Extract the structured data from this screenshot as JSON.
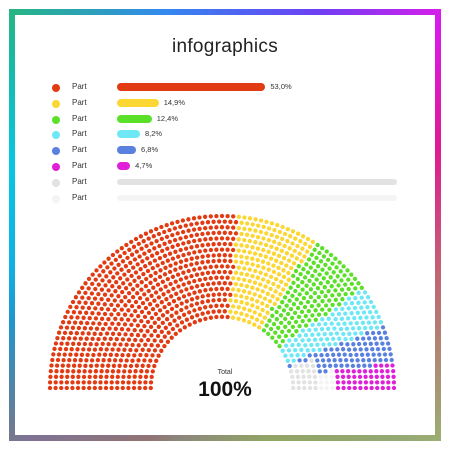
{
  "title": "infographics",
  "total": {
    "label": "Total",
    "value": "100%"
  },
  "chart_data": {
    "type": "bar",
    "title": "infographics",
    "categories": [
      "Part",
      "Part",
      "Part",
      "Part",
      "Part",
      "Part",
      "Part",
      "Part"
    ],
    "series": [
      {
        "values": [
          53.0,
          14.9,
          12.4,
          8.2,
          6.8,
          4.7,
          0,
          0
        ]
      }
    ],
    "value_labels": [
      "53,0%",
      "14,9%",
      "12,4%",
      "8,2%",
      "6,8%",
      "4,7%",
      "",
      ""
    ],
    "colors": [
      "#e23a12",
      "#fcd632",
      "#5ae028",
      "#6ee8f5",
      "#5a80e0",
      "#e020d8",
      "#e2e2e2",
      "#f4f4f4"
    ],
    "xlim": [
      0,
      100
    ],
    "dot_arc": {
      "type": "pie",
      "shape": "half-donut of dots",
      "values": [
        53.0,
        14.9,
        12.4,
        8.2,
        6.8,
        4.7
      ]
    },
    "legend": "top",
    "grid": false
  },
  "frame_colors": [
    "#ff1a1a",
    "#ff9a00",
    "#f5f000",
    "#2fe000",
    "#00e0d0",
    "#1a6cff",
    "#7a1aff",
    "#ff1ad0"
  ]
}
